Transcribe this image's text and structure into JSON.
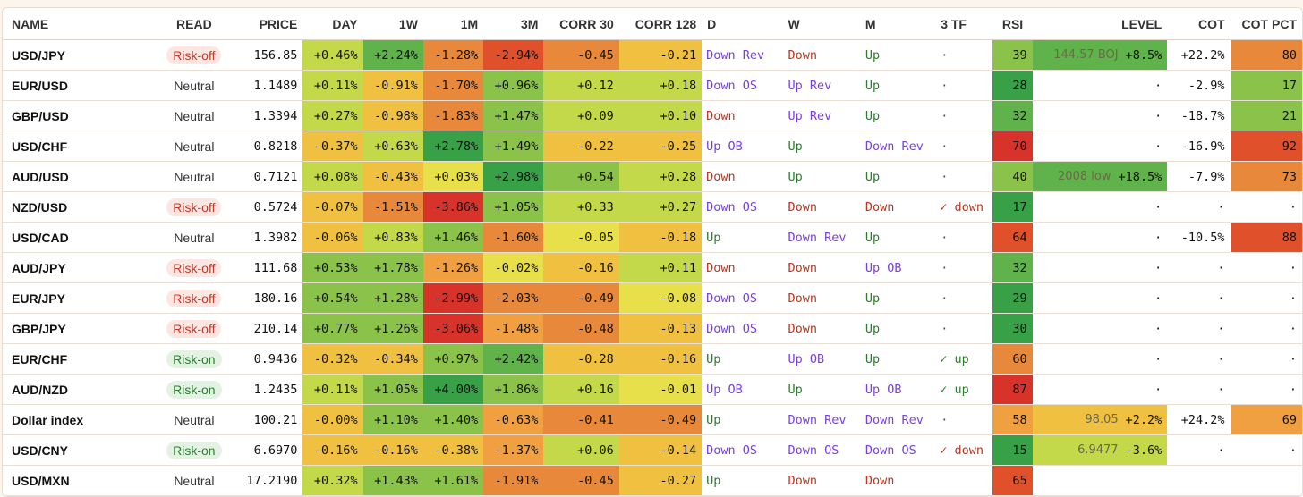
{
  "headers": [
    "NAME",
    "READ",
    "PRICE",
    "DAY",
    "1W",
    "1M",
    "3M",
    "CORR 30",
    "CORR 128",
    "D",
    "W",
    "M",
    "3 TF",
    "RSI",
    "LEVEL",
    "COT",
    "COT PCT"
  ],
  "colors": {
    "dg": "#38a047",
    "g": "#5fb34a",
    "lg": "#8bc34a",
    "yg": "#c4d94a",
    "y": "#e8e04a",
    "yo": "#f0c040",
    "o": "#f0a040",
    "do": "#e8883a",
    "r": "#e0502a",
    "dr": "#d8332a",
    "up": "#2a7d2a",
    "down": "#b8361f",
    "blue": "#7b3fe0",
    "white": "#ffffff"
  },
  "rows": [
    {
      "name": "USD/JPY",
      "read": "Risk-off",
      "read_type": "off",
      "price": "156.85",
      "day": {
        "v": "+0.46%",
        "c": "yg"
      },
      "w1": {
        "v": "+2.24%",
        "c": "g"
      },
      "m1": {
        "v": "-1.28%",
        "c": "do"
      },
      "m3": {
        "v": "-2.94%",
        "c": "r"
      },
      "c30": {
        "v": "-0.45",
        "c": "do"
      },
      "c128": {
        "v": "-0.21",
        "c": "yo"
      },
      "d": {
        "v": "Down Rev",
        "t": "blue"
      },
      "w": {
        "v": "Down",
        "t": "down"
      },
      "m": {
        "v": "Up",
        "t": "up"
      },
      "tf": {
        "v": "·",
        "t": "dot"
      },
      "rsi": {
        "v": "39",
        "c": "lg"
      },
      "level": {
        "t": "144.57 BOJ",
        "p": "+8.5%",
        "c": "g"
      },
      "cot": {
        "v": "+22.2%"
      },
      "cotpct": {
        "v": "80",
        "c": "do"
      }
    },
    {
      "name": "EUR/USD",
      "read": "Neutral",
      "read_type": "neu",
      "price": "1.1489",
      "day": {
        "v": "+0.11%",
        "c": "yg"
      },
      "w1": {
        "v": "-0.91%",
        "c": "yo"
      },
      "m1": {
        "v": "-1.70%",
        "c": "do"
      },
      "m3": {
        "v": "+0.96%",
        "c": "lg"
      },
      "c30": {
        "v": "+0.12",
        "c": "yg"
      },
      "c128": {
        "v": "+0.18",
        "c": "yg"
      },
      "d": {
        "v": "Down OS",
        "t": "blue"
      },
      "w": {
        "v": "Up Rev",
        "t": "blue"
      },
      "m": {
        "v": "Up",
        "t": "up"
      },
      "tf": {
        "v": "·",
        "t": "dot"
      },
      "rsi": {
        "v": "28",
        "c": "dg"
      },
      "level": {
        "t": "",
        "p": "·",
        "c": "white"
      },
      "cot": {
        "v": "-2.9%"
      },
      "cotpct": {
        "v": "17",
        "c": "lg"
      }
    },
    {
      "name": "GBP/USD",
      "read": "Neutral",
      "read_type": "neu",
      "price": "1.3394",
      "day": {
        "v": "+0.27%",
        "c": "yg"
      },
      "w1": {
        "v": "-0.98%",
        "c": "yo"
      },
      "m1": {
        "v": "-1.83%",
        "c": "do"
      },
      "m3": {
        "v": "+1.47%",
        "c": "lg"
      },
      "c30": {
        "v": "+0.09",
        "c": "yg"
      },
      "c128": {
        "v": "+0.10",
        "c": "yg"
      },
      "d": {
        "v": "Down",
        "t": "down"
      },
      "w": {
        "v": "Up Rev",
        "t": "blue"
      },
      "m": {
        "v": "Up",
        "t": "up"
      },
      "tf": {
        "v": "·",
        "t": "dot"
      },
      "rsi": {
        "v": "32",
        "c": "g"
      },
      "level": {
        "t": "",
        "p": "·",
        "c": "white"
      },
      "cot": {
        "v": "-18.7%"
      },
      "cotpct": {
        "v": "21",
        "c": "lg"
      }
    },
    {
      "name": "USD/CHF",
      "read": "Neutral",
      "read_type": "neu",
      "price": "0.8218",
      "day": {
        "v": "-0.37%",
        "c": "yo"
      },
      "w1": {
        "v": "+0.63%",
        "c": "yg"
      },
      "m1": {
        "v": "+2.78%",
        "c": "dg"
      },
      "m3": {
        "v": "+1.49%",
        "c": "lg"
      },
      "c30": {
        "v": "-0.22",
        "c": "yo"
      },
      "c128": {
        "v": "-0.25",
        "c": "yo"
      },
      "d": {
        "v": "Up OB",
        "t": "blue"
      },
      "w": {
        "v": "Up",
        "t": "up"
      },
      "m": {
        "v": "Down Rev",
        "t": "blue"
      },
      "tf": {
        "v": "·",
        "t": "dot"
      },
      "rsi": {
        "v": "70",
        "c": "dr"
      },
      "level": {
        "t": "",
        "p": "·",
        "c": "white"
      },
      "cot": {
        "v": "-16.9%"
      },
      "cotpct": {
        "v": "92",
        "c": "r"
      }
    },
    {
      "name": "AUD/USD",
      "read": "Neutral",
      "read_type": "neu",
      "price": "0.7121",
      "day": {
        "v": "+0.08%",
        "c": "yg"
      },
      "w1": {
        "v": "-0.43%",
        "c": "yo"
      },
      "m1": {
        "v": "+0.03%",
        "c": "y"
      },
      "m3": {
        "v": "+2.98%",
        "c": "dg"
      },
      "c30": {
        "v": "+0.54",
        "c": "lg"
      },
      "c128": {
        "v": "+0.28",
        "c": "yg"
      },
      "d": {
        "v": "Down",
        "t": "down"
      },
      "w": {
        "v": "Up",
        "t": "up"
      },
      "m": {
        "v": "Up",
        "t": "up"
      },
      "tf": {
        "v": "·",
        "t": "dot"
      },
      "rsi": {
        "v": "40",
        "c": "lg"
      },
      "level": {
        "t": "2008 low",
        "p": "+18.5%",
        "c": "g"
      },
      "cot": {
        "v": "-7.9%"
      },
      "cotpct": {
        "v": "73",
        "c": "do"
      }
    },
    {
      "name": "NZD/USD",
      "read": "Risk-off",
      "read_type": "off",
      "price": "0.5724",
      "day": {
        "v": "-0.07%",
        "c": "yo"
      },
      "w1": {
        "v": "-1.51%",
        "c": "do"
      },
      "m1": {
        "v": "-3.86%",
        "c": "dr"
      },
      "m3": {
        "v": "+1.05%",
        "c": "lg"
      },
      "c30": {
        "v": "+0.33",
        "c": "yg"
      },
      "c128": {
        "v": "+0.27",
        "c": "yg"
      },
      "d": {
        "v": "Down OS",
        "t": "blue"
      },
      "w": {
        "v": "Down",
        "t": "down"
      },
      "m": {
        "v": "Down",
        "t": "down"
      },
      "tf": {
        "v": "✓ down",
        "t": "down"
      },
      "rsi": {
        "v": "17",
        "c": "dg"
      },
      "level": {
        "t": "",
        "p": "·",
        "c": "white"
      },
      "cot": {
        "v": "·"
      },
      "cotpct": {
        "v": "·",
        "c": "white"
      }
    },
    {
      "name": "USD/CAD",
      "read": "Neutral",
      "read_type": "neu",
      "price": "1.3982",
      "day": {
        "v": "-0.06%",
        "c": "yo"
      },
      "w1": {
        "v": "+0.83%",
        "c": "yg"
      },
      "m1": {
        "v": "+1.46%",
        "c": "lg"
      },
      "m3": {
        "v": "-1.60%",
        "c": "do"
      },
      "c30": {
        "v": "-0.05",
        "c": "y"
      },
      "c128": {
        "v": "-0.18",
        "c": "yo"
      },
      "d": {
        "v": "Up",
        "t": "up"
      },
      "w": {
        "v": "Down Rev",
        "t": "blue"
      },
      "m": {
        "v": "Up",
        "t": "up"
      },
      "tf": {
        "v": "·",
        "t": "dot"
      },
      "rsi": {
        "v": "64",
        "c": "r"
      },
      "level": {
        "t": "",
        "p": "·",
        "c": "white"
      },
      "cot": {
        "v": "-10.5%"
      },
      "cotpct": {
        "v": "88",
        "c": "r"
      }
    },
    {
      "name": "AUD/JPY",
      "read": "Risk-off",
      "read_type": "off",
      "price": "111.68",
      "day": {
        "v": "+0.53%",
        "c": "lg"
      },
      "w1": {
        "v": "+1.78%",
        "c": "lg"
      },
      "m1": {
        "v": "-1.26%",
        "c": "o"
      },
      "m3": {
        "v": "-0.02%",
        "c": "y"
      },
      "c30": {
        "v": "-0.16",
        "c": "yo"
      },
      "c128": {
        "v": "+0.11",
        "c": "yg"
      },
      "d": {
        "v": "Down",
        "t": "down"
      },
      "w": {
        "v": "Down",
        "t": "down"
      },
      "m": {
        "v": "Up OB",
        "t": "blue"
      },
      "tf": {
        "v": "·",
        "t": "dot"
      },
      "rsi": {
        "v": "32",
        "c": "g"
      },
      "level": {
        "t": "",
        "p": "·",
        "c": "white"
      },
      "cot": {
        "v": "·"
      },
      "cotpct": {
        "v": "·",
        "c": "white"
      }
    },
    {
      "name": "EUR/JPY",
      "read": "Risk-off",
      "read_type": "off",
      "price": "180.16",
      "day": {
        "v": "+0.54%",
        "c": "lg"
      },
      "w1": {
        "v": "+1.28%",
        "c": "lg"
      },
      "m1": {
        "v": "-2.99%",
        "c": "dr"
      },
      "m3": {
        "v": "-2.03%",
        "c": "do"
      },
      "c30": {
        "v": "-0.49",
        "c": "do"
      },
      "c128": {
        "v": "-0.08",
        "c": "y"
      },
      "d": {
        "v": "Down OS",
        "t": "blue"
      },
      "w": {
        "v": "Down",
        "t": "down"
      },
      "m": {
        "v": "Up",
        "t": "up"
      },
      "tf": {
        "v": "·",
        "t": "dot"
      },
      "rsi": {
        "v": "29",
        "c": "dg"
      },
      "level": {
        "t": "",
        "p": "·",
        "c": "white"
      },
      "cot": {
        "v": "·"
      },
      "cotpct": {
        "v": "·",
        "c": "white"
      }
    },
    {
      "name": "GBP/JPY",
      "read": "Risk-off",
      "read_type": "off",
      "price": "210.14",
      "day": {
        "v": "+0.77%",
        "c": "lg"
      },
      "w1": {
        "v": "+1.26%",
        "c": "lg"
      },
      "m1": {
        "v": "-3.06%",
        "c": "dr"
      },
      "m3": {
        "v": "-1.48%",
        "c": "o"
      },
      "c30": {
        "v": "-0.48",
        "c": "do"
      },
      "c128": {
        "v": "-0.13",
        "c": "yo"
      },
      "d": {
        "v": "Down OS",
        "t": "blue"
      },
      "w": {
        "v": "Down",
        "t": "down"
      },
      "m": {
        "v": "Up",
        "t": "up"
      },
      "tf": {
        "v": "·",
        "t": "dot"
      },
      "rsi": {
        "v": "30",
        "c": "dg"
      },
      "level": {
        "t": "",
        "p": "·",
        "c": "white"
      },
      "cot": {
        "v": "·"
      },
      "cotpct": {
        "v": "·",
        "c": "white"
      }
    },
    {
      "name": "EUR/CHF",
      "read": "Risk-on",
      "read_type": "on",
      "price": "0.9436",
      "day": {
        "v": "-0.32%",
        "c": "yo"
      },
      "w1": {
        "v": "-0.34%",
        "c": "yo"
      },
      "m1": {
        "v": "+0.97%",
        "c": "lg"
      },
      "m3": {
        "v": "+2.42%",
        "c": "g"
      },
      "c30": {
        "v": "-0.28",
        "c": "yo"
      },
      "c128": {
        "v": "-0.16",
        "c": "yo"
      },
      "d": {
        "v": "Up",
        "t": "up"
      },
      "w": {
        "v": "Up OB",
        "t": "blue"
      },
      "m": {
        "v": "Up",
        "t": "up"
      },
      "tf": {
        "v": "✓ up",
        "t": "up"
      },
      "rsi": {
        "v": "60",
        "c": "do"
      },
      "level": {
        "t": "",
        "p": "·",
        "c": "white"
      },
      "cot": {
        "v": "·"
      },
      "cotpct": {
        "v": "·",
        "c": "white"
      }
    },
    {
      "name": "AUD/NZD",
      "read": "Risk-on",
      "read_type": "on",
      "price": "1.2435",
      "day": {
        "v": "+0.11%",
        "c": "yg"
      },
      "w1": {
        "v": "+1.05%",
        "c": "lg"
      },
      "m1": {
        "v": "+4.00%",
        "c": "dg"
      },
      "m3": {
        "v": "+1.86%",
        "c": "lg"
      },
      "c30": {
        "v": "+0.16",
        "c": "yg"
      },
      "c128": {
        "v": "-0.01",
        "c": "y"
      },
      "d": {
        "v": "Up OB",
        "t": "blue"
      },
      "w": {
        "v": "Up",
        "t": "up"
      },
      "m": {
        "v": "Up OB",
        "t": "blue"
      },
      "tf": {
        "v": "✓ up",
        "t": "up"
      },
      "rsi": {
        "v": "87",
        "c": "dr"
      },
      "level": {
        "t": "",
        "p": "·",
        "c": "white"
      },
      "cot": {
        "v": "·"
      },
      "cotpct": {
        "v": "·",
        "c": "white"
      }
    },
    {
      "name": "Dollar index",
      "read": "Neutral",
      "read_type": "neu",
      "price": "100.21",
      "day": {
        "v": "-0.00%",
        "c": "yo"
      },
      "w1": {
        "v": "+1.10%",
        "c": "lg"
      },
      "m1": {
        "v": "+1.40%",
        "c": "lg"
      },
      "m3": {
        "v": "-0.63%",
        "c": "o"
      },
      "c30": {
        "v": "-0.41",
        "c": "do"
      },
      "c128": {
        "v": "-0.49",
        "c": "do"
      },
      "d": {
        "v": "Up",
        "t": "up"
      },
      "w": {
        "v": "Down Rev",
        "t": "blue"
      },
      "m": {
        "v": "Down Rev",
        "t": "blue"
      },
      "tf": {
        "v": "·",
        "t": "dot"
      },
      "rsi": {
        "v": "58",
        "c": "o"
      },
      "level": {
        "t": "98.05",
        "p": "+2.2%",
        "c": "yo"
      },
      "cot": {
        "v": "+24.2%"
      },
      "cotpct": {
        "v": "69",
        "c": "o"
      }
    },
    {
      "name": "USD/CNY",
      "read": "Risk-on",
      "read_type": "on",
      "price": "6.6970",
      "day": {
        "v": "-0.16%",
        "c": "yo"
      },
      "w1": {
        "v": "-0.16%",
        "c": "yo"
      },
      "m1": {
        "v": "-0.38%",
        "c": "yo"
      },
      "m3": {
        "v": "-1.37%",
        "c": "o"
      },
      "c30": {
        "v": "+0.06",
        "c": "yg"
      },
      "c128": {
        "v": "-0.14",
        "c": "yo"
      },
      "d": {
        "v": "Down OS",
        "t": "blue"
      },
      "w": {
        "v": "Down OS",
        "t": "blue"
      },
      "m": {
        "v": "Down OS",
        "t": "blue"
      },
      "tf": {
        "v": "✓ down",
        "t": "down"
      },
      "rsi": {
        "v": "15",
        "c": "dg"
      },
      "level": {
        "t": "6.9477",
        "p": "-3.6%",
        "c": "yg"
      },
      "cot": {
        "v": "·"
      },
      "cotpct": {
        "v": "·",
        "c": "white"
      }
    },
    {
      "name": "USD/MXN",
      "read": "Neutral",
      "read_type": "neu",
      "price": "17.2190",
      "day": {
        "v": "+0.32%",
        "c": "yg"
      },
      "w1": {
        "v": "+1.43%",
        "c": "lg"
      },
      "m1": {
        "v": "+1.61%",
        "c": "lg"
      },
      "m3": {
        "v": "-1.91%",
        "c": "do"
      },
      "c30": {
        "v": "-0.45",
        "c": "do"
      },
      "c128": {
        "v": "-0.27",
        "c": "yo"
      },
      "d": {
        "v": "Up",
        "t": "up"
      },
      "w": {
        "v": "Down",
        "t": "down"
      },
      "m": {
        "v": "Down",
        "t": "down"
      },
      "tf": {
        "v": "",
        "t": "dot"
      },
      "rsi": {
        "v": "65",
        "c": "r"
      },
      "level": {
        "t": "",
        "p": "",
        "c": "white"
      },
      "cot": {
        "v": ""
      },
      "cotpct": {
        "v": "",
        "c": "white"
      }
    }
  ]
}
